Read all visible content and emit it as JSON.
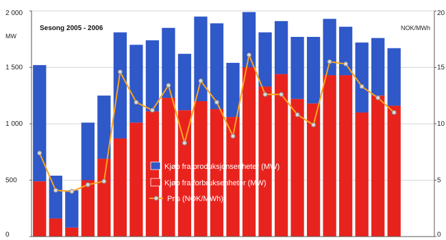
{
  "chart_data": {
    "type": "bar",
    "title": "Sesong 2005 - 2006",
    "stacked": true,
    "n_bars": 25,
    "y_left": {
      "unit": "MW",
      "ylim": [
        0,
        2000
      ],
      "ticks": [
        0,
        500,
        1000,
        1500,
        2000
      ],
      "tick_labels": [
        "0",
        "500",
        "1 000",
        "1 500",
        "2 000"
      ]
    },
    "y_right": {
      "unit": "NOK/MWh",
      "ylim": [
        0,
        20
      ],
      "ticks": [
        0,
        5,
        10,
        15,
        20
      ],
      "tick_labels": [
        "0",
        "5",
        "10",
        "15",
        "20"
      ]
    },
    "grid": true,
    "legend_position": "center",
    "series": [
      {
        "name": "Kjøp fra forbruksenheter (MW)",
        "color": "#e8231e",
        "axis": "left",
        "values": [
          490,
          160,
          80,
          500,
          690,
          870,
          1010,
          1110,
          1230,
          1120,
          1200,
          1130,
          1060,
          1500,
          1330,
          1440,
          1220,
          1180,
          1430,
          1430,
          1100,
          1250,
          1160,
          0,
          0
        ]
      },
      {
        "name": "Kjøp fra produksjonsenheter (MW)",
        "color": "#2f58c8",
        "axis": "left",
        "values": [
          1030,
          380,
          330,
          510,
          560,
          940,
          690,
          630,
          620,
          500,
          750,
          760,
          480,
          490,
          480,
          470,
          550,
          590,
          500,
          430,
          620,
          510,
          510,
          0,
          0
        ]
      },
      {
        "name": "Pris (NOK/MWh)",
        "color": "#ffa31a",
        "axis": "right",
        "type": "line",
        "values": [
          7.4,
          4.1,
          4.0,
          4.6,
          4.9,
          14.6,
          11.9,
          11.2,
          13.4,
          8.3,
          13.8,
          11.9,
          8.9,
          16.1,
          12.6,
          12.6,
          10.8,
          9.9,
          15.5,
          15.3,
          13.3,
          12.3,
          11.0,
          null,
          null
        ]
      }
    ]
  }
}
